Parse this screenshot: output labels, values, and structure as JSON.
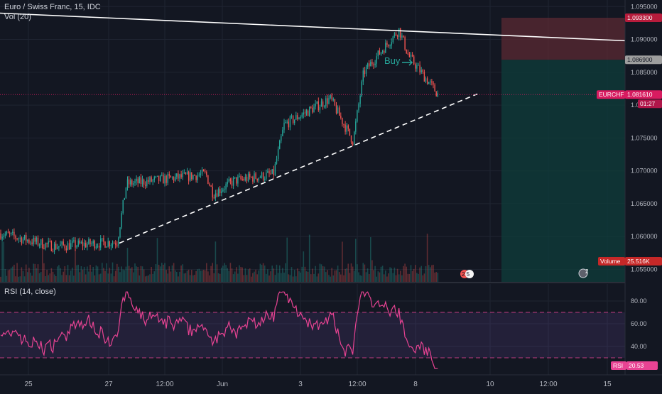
{
  "header": {
    "symbol_line": "Euro / Swiss Franc, 15, IDC",
    "vol_label": "Vol (20)",
    "rsi_label": "RSI (14, close)"
  },
  "colors": {
    "background": "#131722",
    "grid": "#1f2431",
    "up": "#26a69a",
    "down": "#ef5350",
    "rsi": "#e84393",
    "rsi_band": "#7e57c2",
    "stop_zone": "#5b2a33",
    "target_zone": "#0f3b3a",
    "price_marker": "#d81b60"
  },
  "price_axis": {
    "ticks": [
      "1.095000",
      "1.090000",
      "1.085000",
      "1.080000",
      "1.075000",
      "1.070000",
      "1.065000",
      "1.060000",
      "1.055000"
    ],
    "tick_values": [
      1.095,
      1.09,
      1.085,
      1.08,
      1.075,
      1.07,
      1.065,
      1.06,
      1.055
    ],
    "stop_label": "1.093300",
    "entry_label": "1.086900",
    "symbol_badge": "EURCHF",
    "current_price": "1.081610",
    "countdown": "01:27",
    "volume_badge": "Volume",
    "volume_value": "25.516K"
  },
  "rsi_axis": {
    "ticks": [
      "80.00",
      "60.00",
      "40.00"
    ],
    "tick_values": [
      80,
      60,
      40
    ],
    "badge": "RSI",
    "value": "20.53"
  },
  "time_axis": {
    "labels": [
      "25",
      "27",
      "12:00",
      "Jun",
      "3",
      "12:00",
      "8",
      "10",
      "12:00",
      "15"
    ]
  },
  "annotations": {
    "buy_label": "Buy",
    "event_badge_1": "2 5",
    "event_badge_2": "2"
  },
  "chart_data": [
    {
      "type": "candlestick",
      "symbol": "EURCHF",
      "interval": "15",
      "ylim": [
        1.053,
        1.096
      ],
      "key_points": [
        {
          "x": "25",
          "price": 1.0605
        },
        {
          "x": "26",
          "price": 1.0585
        },
        {
          "x": "27",
          "price": 1.0592
        },
        {
          "x": "27",
          "price": 1.068
        },
        {
          "x": "28 12:00",
          "price": 1.0695
        },
        {
          "x": "28 12:00",
          "price": 1.0665
        },
        {
          "x": "Jun",
          "price": 1.0685
        },
        {
          "x": "Jun",
          "price": 1.0695
        },
        {
          "x": "2",
          "price": 1.077
        },
        {
          "x": "3",
          "price": 1.081
        },
        {
          "x": "3 12:00",
          "price": 1.0745
        },
        {
          "x": "3 12:00",
          "price": 1.085
        },
        {
          "x": "8",
          "price": 1.0915
        },
        {
          "x": "8",
          "price": 1.0875
        },
        {
          "x": "9",
          "price": 1.0816
        }
      ],
      "lines": [
        {
          "name": "resistance",
          "from": {
            "x": "22",
            "price": 1.094
          },
          "to": {
            "x": "15 12:00",
            "price": 1.0898
          }
        },
        {
          "name": "support",
          "from": {
            "x": "27",
            "price": 1.059
          },
          "to": {
            "x": "9 12:00",
            "price": 1.0817
          }
        }
      ],
      "position": {
        "entry": 1.0869,
        "stop": 1.0933,
        "current": 1.08161
      }
    },
    {
      "type": "bar",
      "name": "Vol (20)",
      "last_value": "25.516K"
    },
    {
      "type": "line",
      "name": "RSI (14, close)",
      "ylim": [
        15,
        95
      ],
      "bands": [
        30,
        70
      ],
      "last_value": 20.53
    }
  ]
}
